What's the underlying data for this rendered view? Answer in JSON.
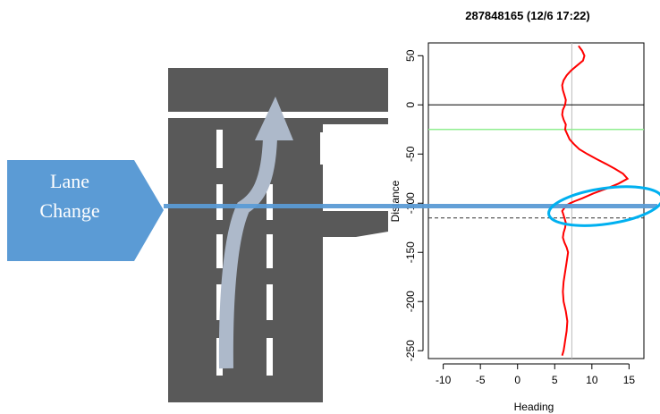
{
  "callout": {
    "line1": "Lane",
    "line2": "Change",
    "fill_color": "#5b9bd5"
  },
  "road": {
    "asphalt_color": "#595959",
    "marking_color": "#ffffff",
    "arrow_color": "#adb9ca"
  },
  "chart_data": {
    "type": "line",
    "title": "287848165 (12/6 17:22)",
    "xlabel": "Heading",
    "ylabel": "Distance",
    "xlim": [
      -12,
      17
    ],
    "ylim": [
      -258,
      63
    ],
    "xticks": [
      -10,
      -5,
      0,
      5,
      10,
      15
    ],
    "yticks": [
      50,
      0,
      -50,
      -100,
      -150,
      -200,
      -250
    ],
    "grid": false,
    "series": [
      {
        "color": "#ff0000",
        "x": [
          8.2,
          8.7,
          9.0,
          8.8,
          8.0,
          7.2,
          6.6,
          6.2,
          6.0,
          6.1,
          6.3,
          6.5,
          6.4,
          6.1,
          6.0,
          6.2,
          6.5,
          6.4,
          6.7,
          7.0,
          7.6,
          8.3,
          9.4,
          10.6,
          11.9,
          13.1,
          14.2,
          14.8,
          13.6,
          12.0,
          10.2,
          8.7,
          7.7,
          7.1,
          6.6,
          6.4,
          6.2,
          6.0,
          6.1,
          6.3,
          6.5,
          6.4,
          6.2,
          6.1,
          6.3,
          6.6,
          6.8,
          6.6,
          6.4,
          6.2,
          6.1,
          6.2,
          6.5,
          6.7,
          6.6,
          6.4,
          6.3,
          6.2,
          6.0
        ],
        "y": [
          60,
          55,
          50,
          45,
          40,
          35,
          30,
          25,
          20,
          15,
          10,
          5,
          0,
          -5,
          -10,
          -15,
          -20,
          -25,
          -30,
          -35,
          -40,
          -45,
          -50,
          -55,
          -60,
          -65,
          -70,
          -75,
          -80,
          -85,
          -90,
          -95,
          -98,
          -100,
          -102,
          -104,
          -106,
          -108,
          -110,
          -115,
          -120,
          -125,
          -130,
          -135,
          -140,
          -145,
          -150,
          -160,
          -170,
          -180,
          -190,
          -200,
          -210,
          -220,
          -230,
          -240,
          -245,
          -250,
          -255
        ]
      }
    ],
    "reference_lines": {
      "vertical_x": 7.3,
      "horizontal_black_y": 0,
      "horizontal_green_y": -25,
      "horizontal_dashed_y": -115
    },
    "colors": {
      "series": "#ff0000",
      "green_line": "#90ee90",
      "vertical_line": "#bbbbbb",
      "highlight": "#5b9bd5",
      "ellipse": "#00b0f0"
    }
  },
  "highlight": {
    "distance": -103
  }
}
